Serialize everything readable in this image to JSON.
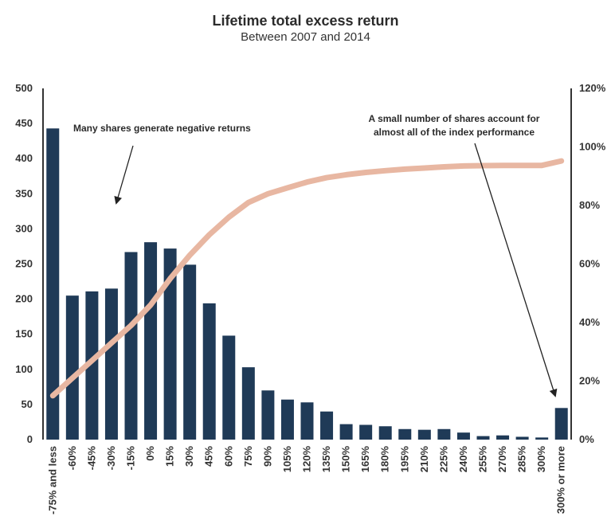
{
  "chart_data": {
    "type": "bar",
    "title": "Lifetime total excess return",
    "subtitle": "Between 2007 and 2014",
    "categories": [
      "-75% and less",
      "-60%",
      "-45%",
      "-30%",
      "-15%",
      "0%",
      "15%",
      "30%",
      "45%",
      "60%",
      "75%",
      "90%",
      "105%",
      "120%",
      "135%",
      "150%",
      "165%",
      "180%",
      "195%",
      "210%",
      "225%",
      "240%",
      "255%",
      "270%",
      "285%",
      "300%",
      "300% or more"
    ],
    "series": [
      {
        "type": "bar",
        "values": [
          443,
          205,
          211,
          215,
          267,
          281,
          272,
          249,
          194,
          148,
          103,
          70,
          57,
          53,
          40,
          22,
          21,
          19,
          15,
          14,
          15,
          10,
          5,
          6,
          4,
          3,
          45
        ]
      },
      {
        "type": "line",
        "axis": "right",
        "values": [
          15,
          21,
          27,
          33,
          39,
          46,
          55,
          63,
          70,
          76,
          81,
          84,
          86,
          88,
          89.5,
          90.5,
          91.3,
          91.9,
          92.4,
          92.8,
          93.2,
          93.5,
          93.6,
          93.7,
          93.7,
          93.7,
          95.2
        ]
      }
    ],
    "y_left": {
      "ticks": [
        "0",
        "50",
        "100",
        "150",
        "200",
        "250",
        "300",
        "350",
        "400",
        "450",
        "500"
      ],
      "lim": [
        0,
        500
      ]
    },
    "y_right": {
      "ticks": [
        "0%",
        "20%",
        "40%",
        "60%",
        "80%",
        "100%",
        "120%"
      ],
      "lim": [
        0,
        120
      ]
    },
    "annotations": {
      "left": "Many shares generate negative returns",
      "right_line1": "A small number of shares account for",
      "right_line2": "almost all of the index performance"
    },
    "colors": {
      "bar": "#1f3a57",
      "line": "#e8b7a2",
      "arrow": "#222222",
      "axis": "#333333"
    },
    "grid": false
  }
}
